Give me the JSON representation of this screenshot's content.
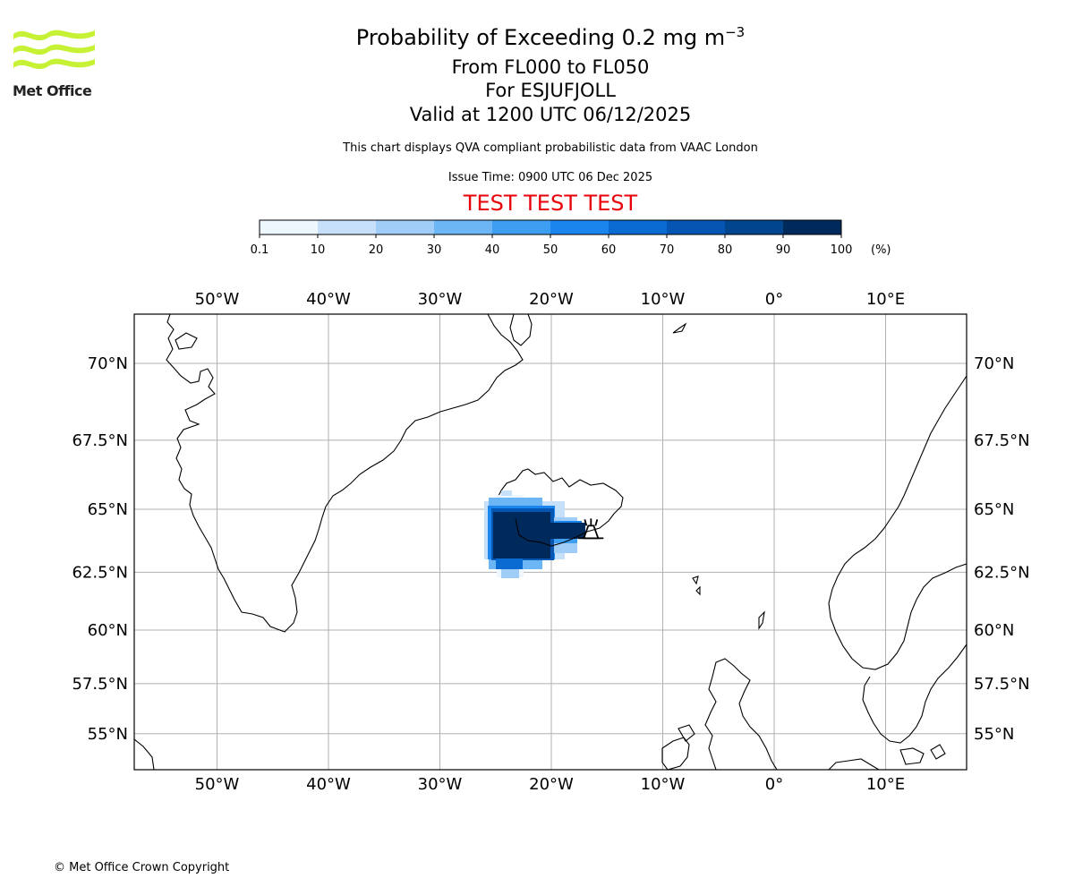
{
  "logo": {
    "text": "Met Office",
    "color": "#c6f135"
  },
  "title": {
    "main_prefix": "Probability of Exceeding 0.2 mg m",
    "main_superscript": "−3",
    "levels": "From FL000 to FL050",
    "volcano_line": "For ESJUFJOLL",
    "valid": "Valid at 1200 UTC 06/12/2025"
  },
  "subtitle": "This chart displays QVA compliant probabilistic data from VAAC London",
  "issue_time": "Issue Time: 0900 UTC 06 Dec 2025",
  "test_banner": {
    "text": "TEST TEST TEST",
    "color": "#e8000b"
  },
  "colorbar": {
    "ticks": [
      "0.1",
      "10",
      "20",
      "30",
      "40",
      "50",
      "60",
      "70",
      "80",
      "90",
      "100"
    ],
    "unit": "(%)",
    "colors": [
      "#eef6fe",
      "#c6e0fa",
      "#9fcdf7",
      "#6db6f5",
      "#3e9ff2",
      "#1a85ec",
      "#0a6bd3",
      "#0556b2",
      "#02458f",
      "#012a5c"
    ]
  },
  "map": {
    "lon_labels": [
      "50°W",
      "40°W",
      "30°W",
      "20°W",
      "10°W",
      "0°",
      "10°E"
    ],
    "lon_values": [
      -50,
      -40,
      -30,
      -20,
      -10,
      0,
      10
    ],
    "lat_labels": [
      "70°N",
      "67.5°N",
      "65°N",
      "62.5°N",
      "60°N",
      "57.5°N",
      "55°N"
    ],
    "lat_values": [
      70,
      67.5,
      65,
      62.5,
      60,
      57.5,
      55
    ],
    "plume_color": "#02458f",
    "volcano": {
      "name": "ESJUFJOLL",
      "lon": -16.6,
      "lat": 64.3
    }
  },
  "copyright": "© Met Office Crown Copyright"
}
